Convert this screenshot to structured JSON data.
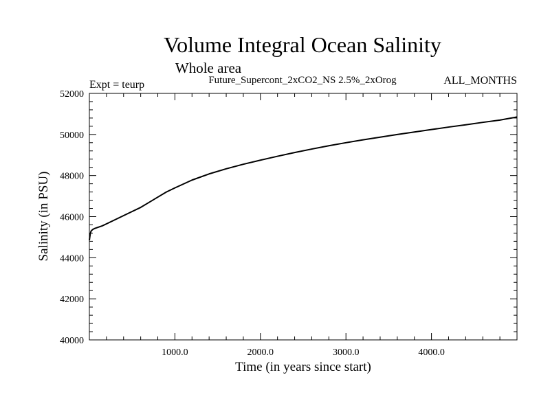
{
  "chart_data": {
    "type": "line",
    "title": "Volume Integral Ocean Salinity",
    "subtitle": "Whole area",
    "left_annotation": "Expt = teurp",
    "experiment": "Future_Supercont_2xCO2_NS 2.5%_2xOrog",
    "right_annotation": "ALL_MONTHS",
    "xlabel": "Time (in years since start)",
    "ylabel": "Salinity (in PSU)",
    "xlim": [
      0,
      5000
    ],
    "ylim": [
      40000,
      52000
    ],
    "x_ticks": [
      1000,
      2000,
      3000,
      4000
    ],
    "x_tick_labels": [
      "1000.0",
      "2000.0",
      "3000.0",
      "4000.0"
    ],
    "y_ticks": [
      40000,
      42000,
      44000,
      46000,
      48000,
      50000,
      52000
    ],
    "y_tick_labels": [
      "40000",
      "42000",
      "44000",
      "46000",
      "48000",
      "50000",
      "52000"
    ],
    "grid": false,
    "series": [
      {
        "x": [
          0,
          5,
          10,
          20,
          40,
          60,
          100,
          150,
          200,
          300,
          400,
          500,
          600,
          700,
          800,
          900,
          1000,
          1200,
          1400,
          1600,
          1800,
          2000,
          2200,
          2400,
          2600,
          2800,
          3000,
          3200,
          3400,
          3600,
          3800,
          4000,
          4200,
          4400,
          4600,
          4800,
          5000
        ],
        "y": [
          44850,
          45000,
          45150,
          45300,
          45380,
          45420,
          45480,
          45550,
          45650,
          45850,
          46050,
          46250,
          46450,
          46700,
          46950,
          47200,
          47400,
          47780,
          48080,
          48330,
          48550,
          48750,
          48940,
          49120,
          49290,
          49450,
          49600,
          49740,
          49870,
          50000,
          50120,
          50240,
          50360,
          50470,
          50590,
          50700,
          50850
        ]
      }
    ]
  }
}
